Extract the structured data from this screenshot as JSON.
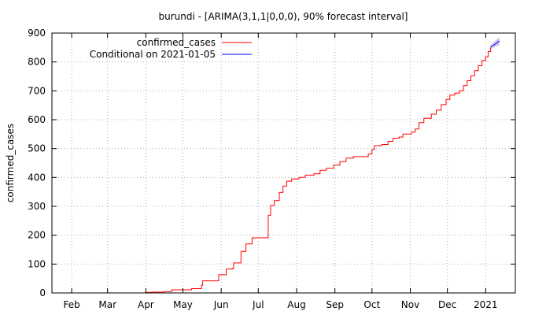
{
  "chart_data": {
    "type": "line",
    "title": "burundi -  [ARIMA(3,1,1|0,0,0), 90% forecast interval]",
    "xlabel": "",
    "ylabel": "confirmed_cases",
    "x_range": [
      "2020-01-16",
      "2021-01-25"
    ],
    "ylim": [
      0,
      900
    ],
    "y_ticks": [
      0,
      100,
      200,
      300,
      400,
      500,
      600,
      700,
      800,
      900
    ],
    "x_ticks": [
      {
        "date": "2020-02-01",
        "label": "Feb"
      },
      {
        "date": "2020-03-01",
        "label": "Mar"
      },
      {
        "date": "2020-04-01",
        "label": "Apr"
      },
      {
        "date": "2020-05-01",
        "label": "May"
      },
      {
        "date": "2020-06-01",
        "label": "Jun"
      },
      {
        "date": "2020-07-01",
        "label": "Jul"
      },
      {
        "date": "2020-08-01",
        "label": "Aug"
      },
      {
        "date": "2020-09-01",
        "label": "Sep"
      },
      {
        "date": "2020-10-01",
        "label": "Oct"
      },
      {
        "date": "2020-11-01",
        "label": "Nov"
      },
      {
        "date": "2020-12-01",
        "label": "Dec"
      },
      {
        "date": "2021-01-01",
        "label": "2021"
      }
    ],
    "grid": true,
    "legend_position": "top-left",
    "series": [
      {
        "name": "confirmed_cases",
        "color": "#ff0000",
        "style": "step",
        "points": [
          [
            "2020-03-31",
            0
          ],
          [
            "2020-04-01",
            2
          ],
          [
            "2020-04-06",
            3
          ],
          [
            "2020-04-16",
            5
          ],
          [
            "2020-04-22",
            11
          ],
          [
            "2020-05-08",
            15
          ],
          [
            "2020-05-16",
            27
          ],
          [
            "2020-05-17",
            42
          ],
          [
            "2020-05-29",
            42
          ],
          [
            "2020-05-30",
            63
          ],
          [
            "2020-06-04",
            63
          ],
          [
            "2020-06-05",
            83
          ],
          [
            "2020-06-10",
            85
          ],
          [
            "2020-06-11",
            104
          ],
          [
            "2020-06-16",
            104
          ],
          [
            "2020-06-17",
            144
          ],
          [
            "2020-06-20",
            144
          ],
          [
            "2020-06-21",
            170
          ],
          [
            "2020-06-25",
            170
          ],
          [
            "2020-06-26",
            191
          ],
          [
            "2020-07-08",
            191
          ],
          [
            "2020-07-09",
            269
          ],
          [
            "2020-07-11",
            303
          ],
          [
            "2020-07-14",
            320
          ],
          [
            "2020-07-18",
            348
          ],
          [
            "2020-07-21",
            370
          ],
          [
            "2020-07-24",
            387
          ],
          [
            "2020-07-28",
            395
          ],
          [
            "2020-08-03",
            400
          ],
          [
            "2020-08-08",
            408
          ],
          [
            "2020-08-15",
            413
          ],
          [
            "2020-08-20",
            425
          ],
          [
            "2020-08-25",
            432
          ],
          [
            "2020-08-31",
            443
          ],
          [
            "2020-09-05",
            455
          ],
          [
            "2020-09-10",
            467
          ],
          [
            "2020-09-16",
            472
          ],
          [
            "2020-09-24",
            472
          ],
          [
            "2020-09-28",
            481
          ],
          [
            "2020-10-01",
            497
          ],
          [
            "2020-10-03",
            510
          ],
          [
            "2020-10-09",
            514
          ],
          [
            "2020-10-14",
            525
          ],
          [
            "2020-10-18",
            536
          ],
          [
            "2020-10-23",
            540
          ],
          [
            "2020-10-26",
            550
          ],
          [
            "2020-11-02",
            557
          ],
          [
            "2020-11-05",
            568
          ],
          [
            "2020-11-08",
            590
          ],
          [
            "2020-11-12",
            605
          ],
          [
            "2020-11-18",
            619
          ],
          [
            "2020-11-22",
            633
          ],
          [
            "2020-11-26",
            652
          ],
          [
            "2020-11-30",
            670
          ],
          [
            "2020-12-03",
            685
          ],
          [
            "2020-12-07",
            692
          ],
          [
            "2020-12-11",
            700
          ],
          [
            "2020-12-14",
            718
          ],
          [
            "2020-12-17",
            735
          ],
          [
            "2020-12-20",
            752
          ],
          [
            "2020-12-23",
            770
          ],
          [
            "2020-12-26",
            787
          ],
          [
            "2020-12-29",
            805
          ],
          [
            "2021-01-01",
            818
          ],
          [
            "2021-01-03",
            836
          ],
          [
            "2021-01-05",
            850
          ]
        ]
      },
      {
        "name": "Conditional on 2021-01-05",
        "color": "#0000ff",
        "style": "line",
        "points": [
          [
            "2021-01-05",
            852
          ],
          [
            "2021-01-07",
            857
          ],
          [
            "2021-01-09",
            863
          ],
          [
            "2021-01-11",
            869
          ],
          [
            "2021-01-12",
            873
          ]
        ],
        "interval_upper": [
          858,
          866,
          874,
          882,
          887
        ],
        "interval_lower": [
          846,
          849,
          853,
          857,
          859
        ],
        "interval_color": "#c8c8e6"
      }
    ]
  }
}
